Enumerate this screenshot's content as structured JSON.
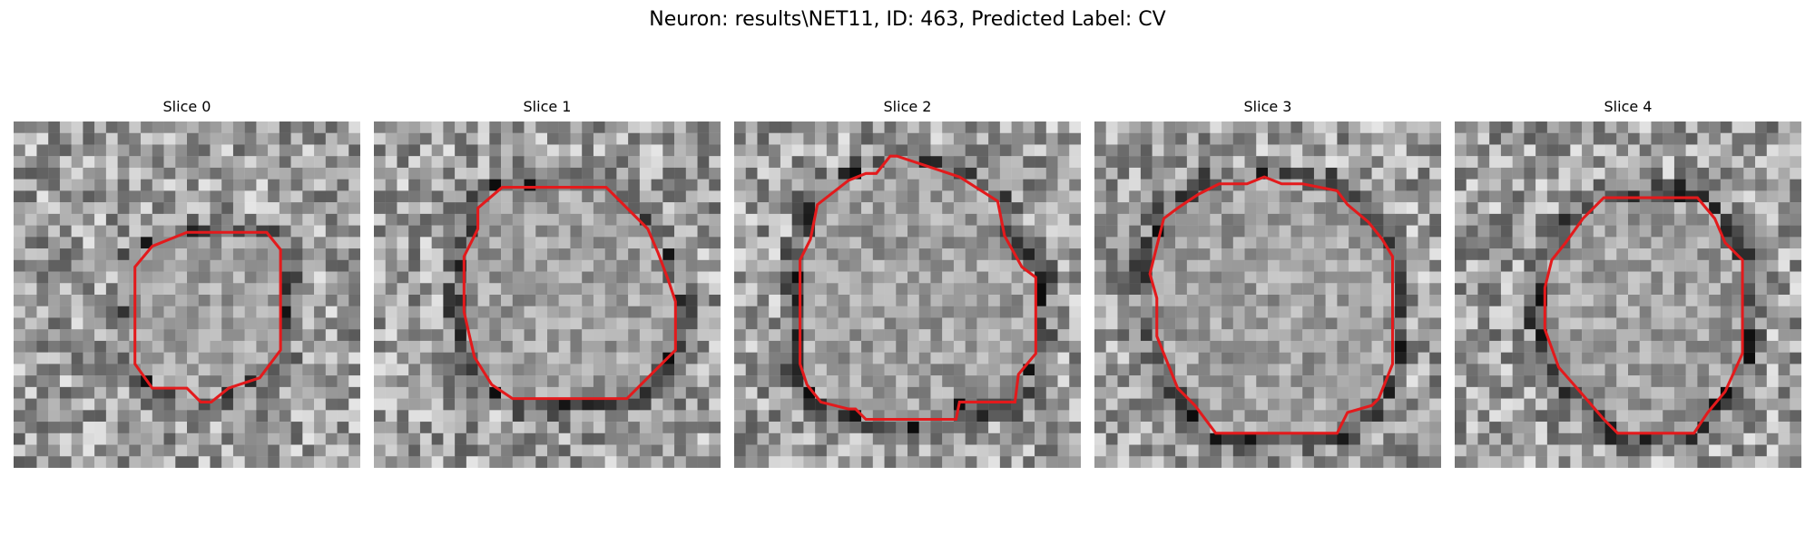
{
  "figure": {
    "title": "Neuron: results\\NET11, ID: 463, Predicted Label: CV",
    "contour_color": "#e31a1c",
    "colormap": "gray",
    "panels": [
      {
        "title": "Slice 0",
        "seed": 11,
        "contour": [
          [
            0.5,
            0.32
          ],
          [
            0.73,
            0.32
          ],
          [
            0.77,
            0.37
          ],
          [
            0.77,
            0.66
          ],
          [
            0.71,
            0.74
          ],
          [
            0.62,
            0.77
          ],
          [
            0.57,
            0.81
          ],
          [
            0.54,
            0.81
          ],
          [
            0.5,
            0.77
          ],
          [
            0.4,
            0.77
          ],
          [
            0.35,
            0.7
          ],
          [
            0.35,
            0.42
          ],
          [
            0.4,
            0.36
          ]
        ],
        "dark_ring": 0.45
      },
      {
        "title": "Slice 1",
        "seed": 23,
        "contour": [
          [
            0.37,
            0.19
          ],
          [
            0.67,
            0.19
          ],
          [
            0.79,
            0.31
          ],
          [
            0.82,
            0.38
          ],
          [
            0.85,
            0.46
          ],
          [
            0.87,
            0.52
          ],
          [
            0.87,
            0.66
          ],
          [
            0.73,
            0.8
          ],
          [
            0.72,
            0.8
          ],
          [
            0.4,
            0.8
          ],
          [
            0.34,
            0.76
          ],
          [
            0.29,
            0.68
          ],
          [
            0.26,
            0.55
          ],
          [
            0.26,
            0.39
          ],
          [
            0.3,
            0.31
          ],
          [
            0.3,
            0.25
          ]
        ],
        "dark_ring": 0.5
      },
      {
        "title": "Slice 2",
        "seed": 37,
        "contour": [
          [
            0.47,
            0.1
          ],
          [
            0.5,
            0.11
          ],
          [
            0.65,
            0.16
          ],
          [
            0.76,
            0.23
          ],
          [
            0.78,
            0.33
          ],
          [
            0.83,
            0.42
          ],
          [
            0.87,
            0.45
          ],
          [
            0.87,
            0.67
          ],
          [
            0.82,
            0.73
          ],
          [
            0.81,
            0.81
          ],
          [
            0.65,
            0.81
          ],
          [
            0.64,
            0.86
          ],
          [
            0.38,
            0.86
          ],
          [
            0.35,
            0.83
          ],
          [
            0.33,
            0.83
          ],
          [
            0.25,
            0.81
          ],
          [
            0.21,
            0.76
          ],
          [
            0.19,
            0.7
          ],
          [
            0.19,
            0.4
          ],
          [
            0.22,
            0.34
          ],
          [
            0.24,
            0.24
          ],
          [
            0.33,
            0.17
          ],
          [
            0.38,
            0.15
          ],
          [
            0.41,
            0.15
          ],
          [
            0.45,
            0.1
          ]
        ],
        "dark_ring": 0.55
      },
      {
        "title": "Slice 3",
        "seed": 51,
        "contour": [
          [
            0.44,
            0.18
          ],
          [
            0.49,
            0.16
          ],
          [
            0.54,
            0.18
          ],
          [
            0.6,
            0.18
          ],
          [
            0.7,
            0.2
          ],
          [
            0.73,
            0.24
          ],
          [
            0.79,
            0.29
          ],
          [
            0.83,
            0.34
          ],
          [
            0.86,
            0.39
          ],
          [
            0.86,
            0.7
          ],
          [
            0.82,
            0.8
          ],
          [
            0.8,
            0.82
          ],
          [
            0.73,
            0.84
          ],
          [
            0.7,
            0.9
          ],
          [
            0.35,
            0.9
          ],
          [
            0.29,
            0.82
          ],
          [
            0.24,
            0.77
          ],
          [
            0.18,
            0.62
          ],
          [
            0.18,
            0.51
          ],
          [
            0.16,
            0.44
          ],
          [
            0.18,
            0.36
          ],
          [
            0.2,
            0.28
          ],
          [
            0.24,
            0.25
          ],
          [
            0.3,
            0.21
          ],
          [
            0.36,
            0.18
          ]
        ],
        "dark_ring": 0.55
      },
      {
        "title": "Slice 4",
        "seed": 67,
        "contour": [
          [
            0.43,
            0.22
          ],
          [
            0.7,
            0.22
          ],
          [
            0.75,
            0.28
          ],
          [
            0.78,
            0.35
          ],
          [
            0.83,
            0.4
          ],
          [
            0.83,
            0.67
          ],
          [
            0.78,
            0.78
          ],
          [
            0.73,
            0.84
          ],
          [
            0.69,
            0.9
          ],
          [
            0.47,
            0.9
          ],
          [
            0.43,
            0.86
          ],
          [
            0.37,
            0.79
          ],
          [
            0.3,
            0.71
          ],
          [
            0.26,
            0.6
          ],
          [
            0.26,
            0.48
          ],
          [
            0.28,
            0.4
          ],
          [
            0.32,
            0.35
          ],
          [
            0.37,
            0.28
          ]
        ],
        "dark_ring": 0.6
      }
    ]
  }
}
